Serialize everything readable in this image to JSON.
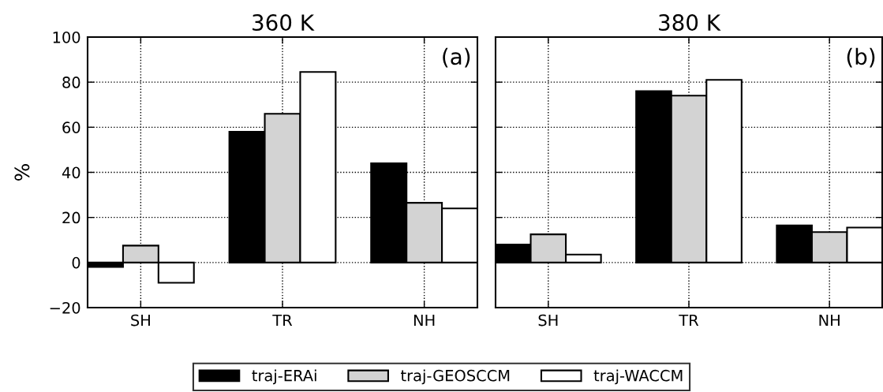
{
  "chart_data": [
    {
      "type": "bar",
      "title": "360 K",
      "ylabel": "%",
      "categories": [
        "SH",
        "TR",
        "NH"
      ],
      "series": [
        {
          "name": "traj-ERAi",
          "color": "#000000",
          "values": [
            -2,
            58,
            44
          ]
        },
        {
          "name": "traj-GEOSCCM",
          "color": "#d3d3d3",
          "values": [
            7.5,
            66,
            26.5
          ]
        },
        {
          "name": "traj-WACCM",
          "color": "#ffffff",
          "values": [
            -9,
            84.5,
            24
          ]
        }
      ],
      "ylim": [
        -20,
        100
      ],
      "yticks": [
        {
          "value": -20,
          "label": "−20"
        },
        0,
        20,
        40,
        60,
        80,
        100
      ],
      "annotations": [
        "(a)"
      ],
      "grid": true,
      "legend": "bottom"
    },
    {
      "type": "bar",
      "title": "380 K",
      "categories": [
        "SH",
        "TR",
        "NH"
      ],
      "series": [
        {
          "color": "#000000",
          "values": [
            8,
            76,
            16.5
          ]
        },
        {
          "color": "#d3d3d3",
          "values": [
            12.5,
            74,
            13.5
          ]
        },
        {
          "color": "#ffffff",
          "values": [
            3.5,
            81,
            15.5
          ]
        }
      ],
      "ylim": [
        -20,
        100
      ],
      "yticks": [
        -20,
        0,
        20,
        40,
        60,
        80,
        100
      ],
      "tick_labels": "x",
      "annotations": [
        "(b)"
      ],
      "grid": true
    }
  ]
}
